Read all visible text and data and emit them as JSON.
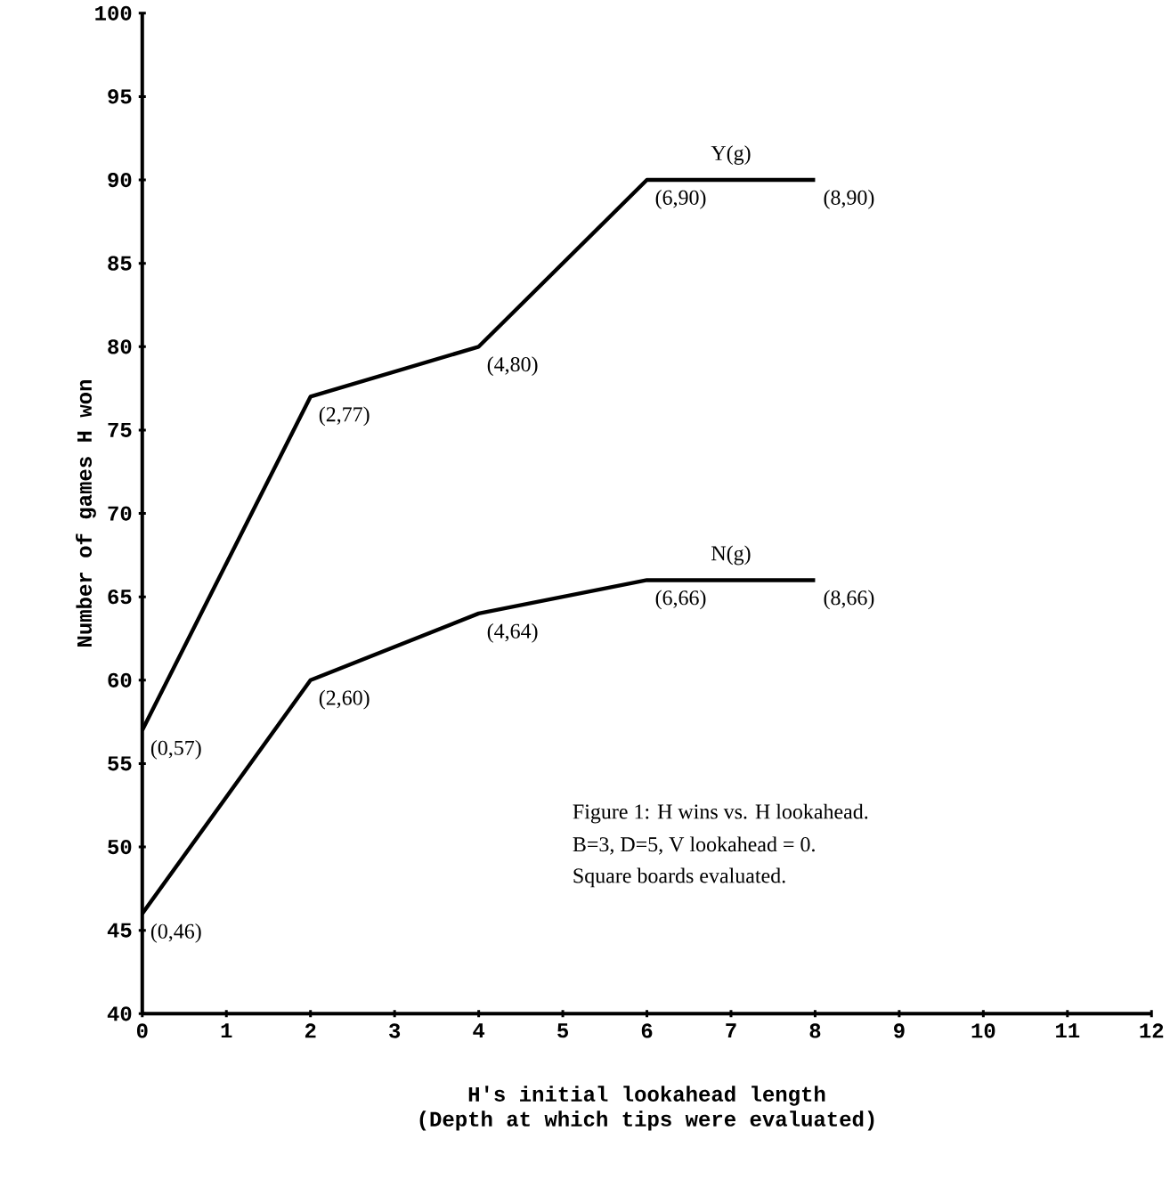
{
  "chart_data": {
    "type": "line",
    "xlabel": "H's initial lookahead length\n(Depth at which tips were evaluated)",
    "ylabel": "Number of games H won",
    "x": [
      0,
      2,
      4,
      6,
      8
    ],
    "series": [
      {
        "name": "Y(g)",
        "color": "#000000",
        "values": [
          57,
          77,
          80,
          90,
          90
        ]
      },
      {
        "name": "N(g)",
        "color": "#000000",
        "values": [
          46,
          60,
          64,
          66,
          66
        ]
      }
    ],
    "xlim": [
      0,
      12
    ],
    "ylim": [
      40,
      100
    ],
    "xticks": [
      0,
      1,
      2,
      3,
      4,
      5,
      6,
      7,
      8,
      9,
      10,
      11,
      12
    ],
    "yticks": [
      40,
      45,
      50,
      55,
      60,
      65,
      70,
      75,
      80,
      85,
      90,
      95,
      100
    ],
    "grid": false,
    "marker": "none",
    "line_style": "solid",
    "annotations": [
      {
        "text": "(0,57)",
        "x": 0,
        "y": 57
      },
      {
        "text": "(2,77)",
        "x": 2,
        "y": 77
      },
      {
        "text": "(4,80)",
        "x": 4,
        "y": 80
      },
      {
        "text": "(6,90)",
        "x": 6,
        "y": 90
      },
      {
        "text": "(8,90)",
        "x": 8,
        "y": 90
      },
      {
        "text": "(0,46)",
        "x": 0,
        "y": 46
      },
      {
        "text": "(2,60)",
        "x": 2,
        "y": 60
      },
      {
        "text": "(4,64)",
        "x": 4,
        "y": 64
      },
      {
        "text": "(6,66)",
        "x": 6,
        "y": 66
      },
      {
        "text": "(8,66)",
        "x": 8,
        "y": 66
      },
      "Figure 1: H wins vs. H lookahead.",
      "B=3, D=5, V lookahead = 0.",
      "Square boards evaluated."
    ]
  }
}
